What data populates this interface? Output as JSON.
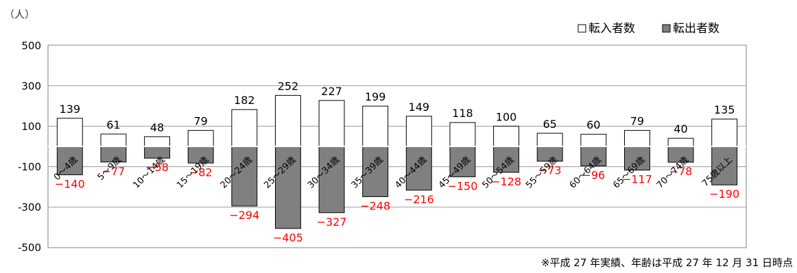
{
  "chart_data": {
    "type": "bar",
    "unit_label": "（人）",
    "categories": [
      "0～4歳",
      "5～9歳",
      "10～14歳",
      "15～19歳",
      "20～24歳",
      "25～29歳",
      "30～34歳",
      "35～39歳",
      "40～44歳",
      "45～49歳",
      "50～54歳",
      "55～59歳",
      "60～64歳",
      "65～69歳",
      "70～74歳",
      "75歳以上"
    ],
    "series": [
      {
        "name": "転入者数",
        "values": [
          139,
          61,
          48,
          79,
          182,
          252,
          227,
          199,
          149,
          118,
          100,
          65,
          60,
          79,
          40,
          135
        ],
        "color": "#ffffff"
      },
      {
        "name": "転出者数",
        "values": [
          -140,
          -77,
          -58,
          -82,
          -294,
          -405,
          -327,
          -248,
          -216,
          -150,
          -128,
          -73,
          -96,
          -117,
          -78,
          -190
        ],
        "color": "#808080"
      }
    ],
    "negative_label_color": "#ff0000",
    "ylim": [
      -500,
      500
    ],
    "yticks": [
      "500",
      "300",
      "100",
      "-100",
      "-300",
      "-500"
    ],
    "grid": true,
    "legend_position": "top-right",
    "footnote": "※平成 27 年実績、年齢は平成 27 年 12 月 31 日時点"
  }
}
